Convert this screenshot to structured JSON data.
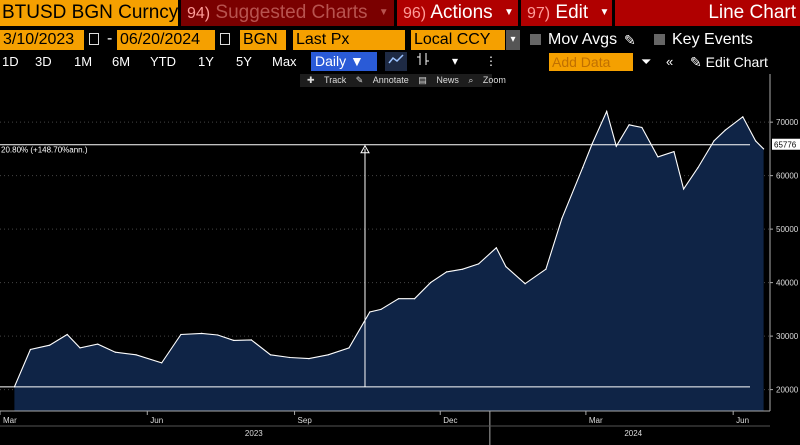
{
  "header": {
    "ticker": "BTUSD BGN Curncy",
    "suggested": {
      "num": "94)",
      "label": "Suggested Charts"
    },
    "actions": {
      "num": "96)",
      "label": "Actions"
    },
    "edit": {
      "num": "97)",
      "label": "Edit"
    },
    "chart_type": "Line Chart"
  },
  "controls": {
    "start_date": "3/10/2023",
    "end_date": "06/20/2024",
    "source": "BGN",
    "field": "Last Px",
    "currency": "Local CCY",
    "mov_avgs": "Mov Avgs",
    "key_events": "Key Events"
  },
  "periods": [
    "1D",
    "3D",
    "1M",
    "6M",
    "YTD",
    "1Y",
    "5Y",
    "Max"
  ],
  "frequency": "Daily",
  "add_data_placeholder": "Add Data",
  "edit_chart": "Edit Chart",
  "tools": [
    "Track",
    "Annotate",
    "News",
    "Zoom"
  ],
  "colors": {
    "accent": "#f5a000",
    "header_red": "#b00000",
    "area_fill": "#0f2446",
    "line": "#ffffff"
  },
  "chart_data": {
    "type": "area",
    "series": [
      {
        "x": [
          "2023-03-10",
          "2023-03-20",
          "2023-04-01",
          "2023-04-12",
          "2023-04-20",
          "2023-05-01",
          "2023-05-12",
          "2023-05-25",
          "2023-06-10",
          "2023-06-22",
          "2023-07-05",
          "2023-07-15",
          "2023-07-25",
          "2023-08-05",
          "2023-08-17",
          "2023-08-29",
          "2023-09-10",
          "2023-09-22",
          "2023-10-05",
          "2023-10-18",
          "2023-10-25",
          "2023-11-05",
          "2023-11-15",
          "2023-11-25",
          "2023-12-05",
          "2023-12-15",
          "2023-12-25",
          "2024-01-05",
          "2024-01-11",
          "2024-01-23",
          "2024-02-05",
          "2024-02-15",
          "2024-02-28",
          "2024-03-05",
          "2024-03-14",
          "2024-03-20",
          "2024-03-28",
          "2024-04-05",
          "2024-04-15",
          "2024-04-25",
          "2024-05-01",
          "2024-05-10",
          "2024-05-20",
          "2024-05-27",
          "2024-06-07",
          "2024-06-15",
          "2024-06-20"
        ],
        "y": [
          20500,
          27500,
          28300,
          30300,
          27800,
          28500,
          27000,
          26500,
          25000,
          30300,
          30500,
          30200,
          29200,
          29300,
          26500,
          26000,
          25800,
          26500,
          27800,
          34500,
          35000,
          37000,
          37000,
          40000,
          42000,
          42500,
          43500,
          46500,
          43000,
          39800,
          42500,
          52000,
          61500,
          66000,
          72000,
          65500,
          69500,
          69000,
          63500,
          64500,
          57500,
          61500,
          66500,
          68500,
          71000,
          66500,
          65000
        ]
      }
    ],
    "y_ticks": [
      "70000",
      "60000",
      "50000",
      "40000",
      "30000",
      "20000"
    ],
    "ylim": [
      16000,
      79000
    ],
    "x_ticks": [
      "Mar",
      "Jun",
      "Sep",
      "Dec",
      "Mar",
      "Jun"
    ],
    "year_labels": [
      "2023",
      "2024"
    ],
    "last_value_label": "65776",
    "annotation": "20.80% (+148.70%ann.)",
    "grid": true
  }
}
